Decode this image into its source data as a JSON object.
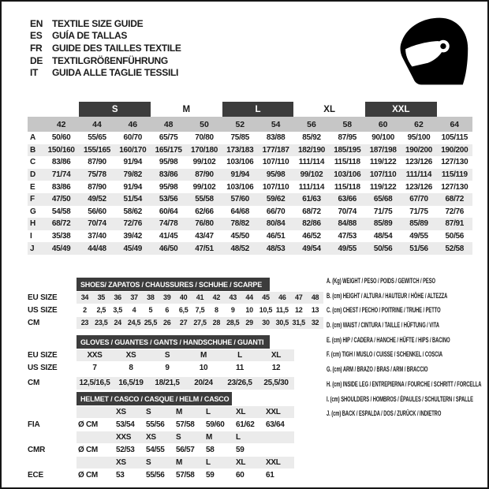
{
  "header": {
    "languages": [
      {
        "code": "EN",
        "text": "TEXTILE SIZE GUIDE"
      },
      {
        "code": "ES",
        "text": "GUÍA DE TALLAS"
      },
      {
        "code": "FR",
        "text": "GUIDE DES TAILLES TEXTILE"
      },
      {
        "code": "DE",
        "text": "TEXTILGRÖßENFÜHRUNG"
      },
      {
        "code": "IT",
        "text": "GUIDA ALLE TAGLIE TESSILI"
      }
    ]
  },
  "size_table": {
    "bands": [
      {
        "label": "S",
        "style": "dark"
      },
      {
        "label": "M",
        "style": "plain"
      },
      {
        "label": "L",
        "style": "dark"
      },
      {
        "label": "XL",
        "style": "plain"
      },
      {
        "label": "XXL",
        "style": "dark"
      }
    ],
    "columns": [
      "42",
      "44",
      "46",
      "48",
      "50",
      "52",
      "54",
      "56",
      "58",
      "60",
      "62",
      "64"
    ],
    "rows": [
      {
        "label": "A",
        "values": [
          "50/60",
          "55/65",
          "60/70",
          "65/75",
          "70/80",
          "75/85",
          "83/88",
          "85/92",
          "87/95",
          "90/100",
          "95/100",
          "105/115"
        ]
      },
      {
        "label": "B",
        "values": [
          "150/160",
          "155/165",
          "160/170",
          "165/175",
          "170/180",
          "173/183",
          "177/187",
          "182/190",
          "185/195",
          "187/198",
          "190/200",
          "190/200"
        ]
      },
      {
        "label": "C",
        "values": [
          "83/86",
          "87/90",
          "91/94",
          "95/98",
          "99/102",
          "103/106",
          "107/110",
          "111/114",
          "115/118",
          "119/122",
          "123/126",
          "127/130"
        ]
      },
      {
        "label": "D",
        "values": [
          "71/74",
          "75/78",
          "79/82",
          "83/86",
          "87/90",
          "91/94",
          "95/98",
          "99/102",
          "103/106",
          "107/110",
          "111/114",
          "115/119"
        ]
      },
      {
        "label": "E",
        "values": [
          "83/86",
          "87/90",
          "91/94",
          "95/98",
          "99/102",
          "103/106",
          "107/110",
          "111/114",
          "115/118",
          "119/122",
          "123/126",
          "127/130"
        ]
      },
      {
        "label": "F",
        "values": [
          "47/50",
          "49/52",
          "51/54",
          "53/56",
          "55/58",
          "57/60",
          "59/62",
          "61/63",
          "63/66",
          "65/68",
          "67/70",
          "68/72"
        ]
      },
      {
        "label": "G",
        "values": [
          "54/58",
          "56/60",
          "58/62",
          "60/64",
          "62/66",
          "64/68",
          "66/70",
          "68/72",
          "70/74",
          "71/75",
          "71/75",
          "72/76"
        ]
      },
      {
        "label": "H",
        "values": [
          "68/72",
          "70/74",
          "72/76",
          "74/78",
          "76/80",
          "78/82",
          "80/84",
          "82/86",
          "84/88",
          "85/89",
          "85/89",
          "87/91"
        ]
      },
      {
        "label": "I",
        "values": [
          "35/38",
          "37/40",
          "39/42",
          "41/45",
          "43/47",
          "45/50",
          "46/51",
          "46/52",
          "47/53",
          "48/54",
          "49/55",
          "50/56"
        ]
      },
      {
        "label": "J",
        "values": [
          "45/49",
          "44/48",
          "45/49",
          "46/50",
          "47/51",
          "48/52",
          "48/53",
          "49/54",
          "49/55",
          "50/56",
          "51/56",
          "52/58"
        ]
      }
    ]
  },
  "shoes": {
    "title": "SHOES/ ZAPATOS / CHAUSSURES / SCHUHE / SCARPE",
    "rows": [
      {
        "label": "EU SIZE",
        "values": [
          "34",
          "35",
          "36",
          "37",
          "38",
          "39",
          "40",
          "41",
          "42",
          "43",
          "44",
          "45",
          "46",
          "47",
          "48"
        ]
      },
      {
        "label": "US SIZE",
        "values": [
          "2",
          "2,5",
          "3,5",
          "4",
          "5",
          "6",
          "6,5",
          "7,5",
          "8",
          "9",
          "10",
          "10,5",
          "11,5",
          "12",
          "13"
        ]
      },
      {
        "label": "CM",
        "values": [
          "23",
          "23,5",
          "24",
          "24,5",
          "25,5",
          "26",
          "27",
          "27,5",
          "28",
          "28,5",
          "29",
          "30",
          "30,5",
          "31,5",
          "32"
        ]
      }
    ]
  },
  "gloves": {
    "title": "GLOVES / GUANTES / GANTS / HANDSCHUHE / GUANTI",
    "rows": [
      {
        "label": "EU SIZE",
        "values": [
          "XXS",
          "XS",
          "S",
          "M",
          "L",
          "XL"
        ]
      },
      {
        "label": "US SIZE",
        "values": [
          "7",
          "8",
          "9",
          "10",
          "11",
          "12"
        ]
      },
      {
        "label": "CM",
        "values": [
          "12,5/16,5",
          "16,5/19",
          "18/21,5",
          "20/24",
          "23/26,5",
          "25,5/30"
        ]
      }
    ]
  },
  "helmet": {
    "title": "HELMET / CASCO / CASQUE / HELM / CASCO",
    "unit": "Ø CM",
    "sections": [
      {
        "label": "FIA",
        "sizes": [
          "XS",
          "S",
          "M",
          "L",
          "XL",
          "XXL"
        ],
        "values": [
          "53/54",
          "55/56",
          "57/58",
          "59/60",
          "61/62",
          "63/64"
        ]
      },
      {
        "label": "CMR",
        "sizes": [
          "XXS",
          "XS",
          "S",
          "M",
          "L",
          ""
        ],
        "values": [
          "52/53",
          "54/55",
          "56/57",
          "58",
          "59",
          ""
        ]
      },
      {
        "label": "ECE",
        "sizes": [
          "XS",
          "S",
          "M",
          "L",
          "XL",
          "XXL"
        ],
        "values": [
          "53",
          "55/56",
          "57/58",
          "59",
          "60",
          "61"
        ]
      }
    ]
  },
  "legend": {
    "items": [
      "A. (Kg) WEIGHT / PESO / POIDS / GEWITCH / PESO",
      "B. (cm) HEIGHT / ALTURA / HAUTEUR / HÖHE / ALTEZZA",
      "C. (cm) CHEST / PECHO / POITRINE / TRUHE / PETTO",
      "D. (cm) WAIST / CINTURA / TAILLE / HÜFTUNG / VITA",
      "E. (cm) HIP / CADERA / HANCHE / HÜFTE / HIPS / BACINO",
      "F. (cm) TIGH / MUSLO / CUISSE / SCHENKEL / COSCIA",
      "G. (cm) ARM / BRAZO / BRAS / ARM / BRACCIO",
      "H. (cm) INSIDE LEG / ENTREPIERNA / FOURCHE / SCHRITT / FORCELLA",
      "I. (cm) SHOULDERS / HOMBROS / ÉPAULES / SCHULTERN / SPALLE",
      "J. (cm) BACK / ESPALDA / DOS / ZURÜCK / INDIETRO"
    ]
  },
  "colors": {
    "dark_band": "#3c3c3c",
    "column_band": "#c6c6c6",
    "row_stripe": "#ebebeb",
    "text": "#1a1a1a",
    "border": "#161616"
  }
}
